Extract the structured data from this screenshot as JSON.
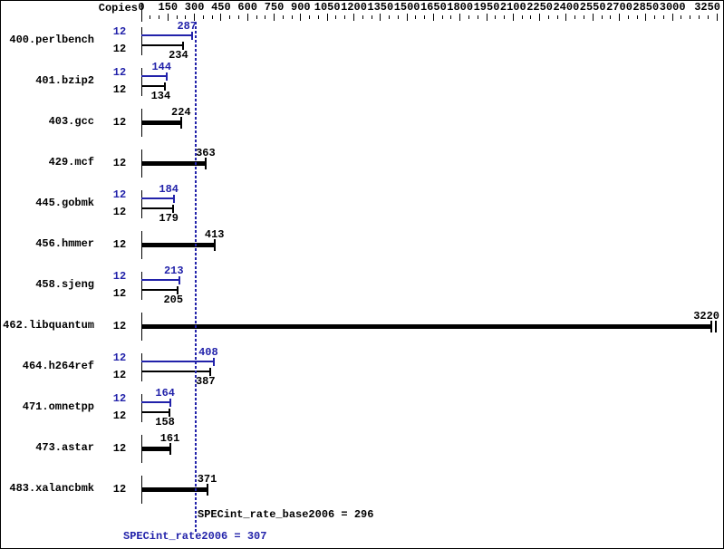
{
  "header": {
    "copies_label": "Copies"
  },
  "footer": {
    "base_text": "SPECint_rate_base2006 = 296",
    "peak_text": "SPECint_rate2006 = 307"
  },
  "colors": {
    "peak_blue": "#2222aa",
    "base_black": "#000000",
    "background": "#ffffff",
    "border": "#000000"
  },
  "axis": {
    "min": 0,
    "max": 3250,
    "minor_step": 50,
    "major_step": 150,
    "tick_labels": [
      "0",
      "150",
      "300",
      "450",
      "600",
      "750",
      "900",
      "1050",
      "1200",
      "1350",
      "1500",
      "1650",
      "1800",
      "1950",
      "2100",
      "2250",
      "2400",
      "2550",
      "2700",
      "2850",
      "3000",
      "3250"
    ]
  },
  "chart_data": {
    "type": "bar",
    "orientation": "horizontal",
    "xlim": [
      0,
      3250
    ],
    "legend": "blue = peak (SPECint_rate2006), black = base (SPECint_rate_base2006)",
    "benchmarks": [
      {
        "name": "400.perlbench",
        "copies": "12",
        "peak": 287,
        "base": 234
      },
      {
        "name": "401.bzip2",
        "copies": "12",
        "peak": 144,
        "base": 134
      },
      {
        "name": "403.gcc",
        "copies": "12",
        "peak": null,
        "base": 224
      },
      {
        "name": "429.mcf",
        "copies": "12",
        "peak": null,
        "base": 363
      },
      {
        "name": "445.gobmk",
        "copies": "12",
        "peak": 184,
        "base": 179
      },
      {
        "name": "456.hmmer",
        "copies": "12",
        "peak": null,
        "base": 413
      },
      {
        "name": "458.sjeng",
        "copies": "12",
        "peak": 213,
        "base": 205
      },
      {
        "name": "462.libquantum",
        "copies": "12",
        "peak": null,
        "base": 3220
      },
      {
        "name": "464.h264ref",
        "copies": "12",
        "peak": 408,
        "base": 387
      },
      {
        "name": "471.omnetpp",
        "copies": "12",
        "peak": 164,
        "base": 158
      },
      {
        "name": "473.astar",
        "copies": "12",
        "peak": null,
        "base": 161
      },
      {
        "name": "483.xalancbmk",
        "copies": "12",
        "peak": null,
        "base": 371
      }
    ],
    "summary": {
      "base_metric": "SPECint_rate_base2006",
      "base": 296,
      "peak_metric": "SPECint_rate2006",
      "peak": 307
    }
  }
}
